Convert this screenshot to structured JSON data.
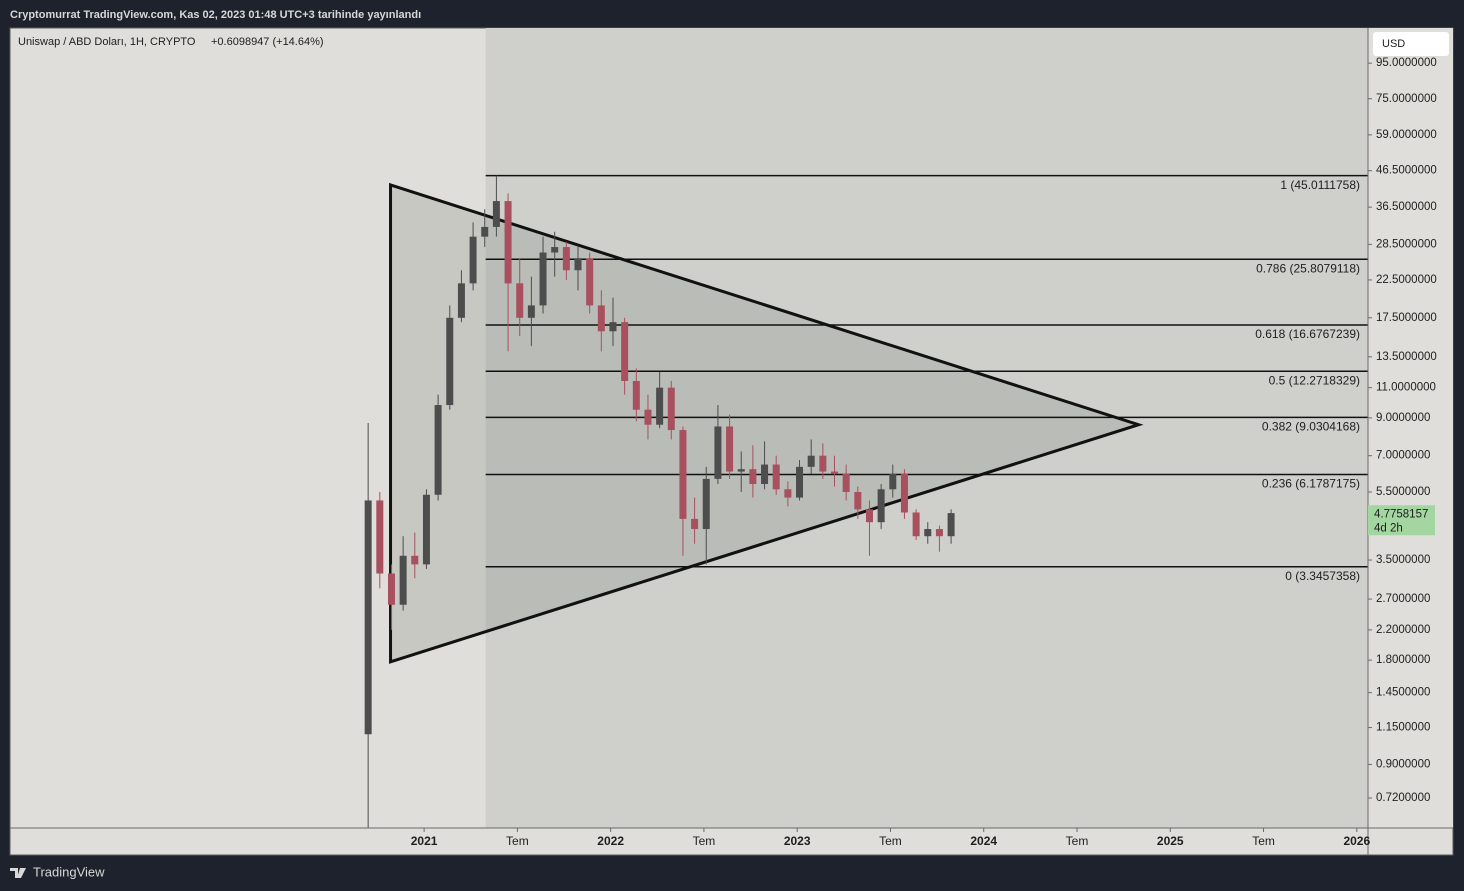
{
  "header": "Cryptomurrat TradingView.com, Kas 02, 2023 01:48 UTC+3 tarihinde yayınlandı",
  "footer_brand": "TradingView",
  "chart_data": {
    "type": "candlestick",
    "symbol": "Uniswap / ABD Doları, 1H, CRYPTO",
    "change": "+0.6098947 (+14.64%)",
    "currency": "USD",
    "log_scale": true,
    "xlim": [
      2018.78,
      2026.06
    ],
    "ylim": [
      0.59,
      120
    ],
    "xticks": [
      2021,
      {
        "value": 2021.5,
        "label": "Tem"
      },
      2022,
      {
        "value": 2022.5,
        "label": "Tem"
      },
      2023,
      {
        "value": 2023.5,
        "label": "Tem"
      },
      2024,
      {
        "value": 2024.5,
        "label": "Tem"
      },
      2025,
      {
        "value": 2025.5,
        "label": "Tem"
      },
      2026
    ],
    "yticks": [
      {
        "value": 95,
        "label": "95.0000000"
      },
      {
        "value": 75,
        "label": "75.0000000"
      },
      {
        "value": 59,
        "label": "59.0000000"
      },
      {
        "value": 46.5,
        "label": "46.5000000"
      },
      {
        "value": 36.5,
        "label": "36.5000000"
      },
      {
        "value": 28.5,
        "label": "28.5000000"
      },
      {
        "value": 22.5,
        "label": "22.5000000"
      },
      {
        "value": 17.5,
        "label": "17.5000000"
      },
      {
        "value": 13.5,
        "label": "13.5000000"
      },
      {
        "value": 11,
        "label": "11.0000000"
      },
      {
        "value": 9,
        "label": "9.0000000"
      },
      {
        "value": 7,
        "label": "7.0000000"
      },
      {
        "value": 5.5,
        "label": "5.5000000"
      },
      {
        "value": 3.5,
        "label": "3.5000000"
      },
      {
        "value": 2.7,
        "label": "2.7000000"
      },
      {
        "value": 2.2,
        "label": "2.2000000"
      },
      {
        "value": 1.8,
        "label": "1.8000000"
      },
      {
        "value": 1.45,
        "label": "1.4500000"
      },
      {
        "value": 1.15,
        "label": "1.1500000"
      },
      {
        "value": 0.9,
        "label": "0.9000000"
      },
      {
        "value": 0.72,
        "label": "0.7200000"
      }
    ],
    "up_color": "#4d4d4d",
    "down_color": "#a8505e",
    "x": [
      2020.7,
      2020.7625,
      2020.825,
      2020.8875,
      2020.95,
      2021.0125,
      2021.075,
      2021.1375,
      2021.2,
      2021.2625,
      2021.325,
      2021.3875,
      2021.45,
      2021.5125,
      2021.575,
      2021.6375,
      2021.7,
      2021.7625,
      2021.825,
      2021.8875,
      2021.95,
      2022.0125,
      2022.075,
      2022.1375,
      2022.2,
      2022.2625,
      2022.325,
      2022.3875,
      2022.45,
      2022.5125,
      2022.575,
      2022.6375,
      2022.7,
      2022.7625,
      2022.825,
      2022.8875,
      2022.95,
      2023.0125,
      2023.075,
      2023.1375,
      2023.2,
      2023.2625,
      2023.325,
      2023.3875,
      2023.45,
      2023.5125,
      2023.575,
      2023.6375,
      2023.7,
      2023.7625,
      2023.825
    ],
    "open": [
      1.1,
      5.2,
      3.2,
      2.6,
      3.6,
      3.4,
      5.4,
      9.8,
      17.5,
      22,
      30,
      32,
      38,
      22,
      17.5,
      19,
      27,
      28,
      24,
      26,
      19,
      16,
      17,
      11.5,
      9.5,
      8.6,
      11,
      8.3,
      4.6,
      4.3,
      6,
      8.5,
      6.3,
      6.4,
      5.8,
      6.6,
      5.6,
      5.3,
      6.5,
      7.0,
      6.3,
      6.2,
      5.5,
      4.9,
      4.5,
      5.6,
      6.2,
      4.8,
      4.1,
      4.3,
      4.1
    ],
    "high": [
      8.7,
      5.5,
      3.4,
      4.1,
      4.2,
      5.6,
      10.5,
      19,
      24,
      33,
      36,
      45,
      40,
      26,
      23,
      30,
      31,
      29,
      28,
      27,
      21,
      20,
      17.5,
      12.5,
      10.5,
      12.2,
      11.5,
      8.5,
      5.3,
      6.5,
      9.8,
      9.2,
      7.2,
      7.5,
      7.7,
      7.0,
      5.9,
      6.8,
      7.8,
      7.6,
      7.0,
      6.6,
      5.7,
      5.2,
      5.8,
      6.6,
      6.4,
      4.9,
      4.5,
      4.4,
      4.9
    ],
    "low": [
      0.59,
      2.9,
      2.2,
      2.5,
      3.1,
      3.3,
      5.2,
      9.5,
      17,
      21,
      28,
      30,
      14,
      15.5,
      14.5,
      18,
      23,
      22.5,
      21,
      18,
      14,
      14.5,
      10.5,
      8.8,
      7.8,
      8.4,
      7.8,
      3.6,
      3.9,
      3.4,
      5.8,
      6.0,
      5.5,
      5.3,
      5.6,
      5.4,
      5.0,
      5.2,
      6.2,
      6.0,
      5.7,
      5.2,
      4.6,
      3.6,
      4.3,
      5.3,
      4.6,
      4.0,
      3.9,
      3.7,
      3.9
    ],
    "close": [
      5.2,
      3.2,
      2.6,
      3.6,
      3.4,
      5.4,
      9.8,
      17.5,
      22,
      30,
      32,
      38,
      22,
      17.5,
      19,
      27,
      28,
      24,
      26,
      19,
      16,
      17,
      11.5,
      9.5,
      8.6,
      11,
      8.3,
      4.6,
      4.3,
      6.0,
      8.5,
      6.3,
      6.4,
      5.8,
      6.6,
      5.6,
      5.3,
      6.5,
      7.0,
      6.3,
      6.2,
      5.5,
      4.9,
      4.5,
      5.6,
      6.2,
      4.8,
      4.1,
      4.3,
      4.1,
      4.78
    ],
    "last_price": 4.7758157,
    "countdown": "4d 2h",
    "fib_start": 2021.33,
    "fib_levels": [
      {
        "label": "1 (45.0111758)",
        "value": 45.0111758
      },
      {
        "label": "0.786 (25.8079118)",
        "value": 25.8079118
      },
      {
        "label": "0.618 (16.6767239)",
        "value": 16.6767239
      },
      {
        "label": "0.5 (12.2718329)",
        "value": 12.2718329
      },
      {
        "label": "0.382 (9.0304168)",
        "value": 9.0304168
      },
      {
        "label": "0.236 (6.1787175)",
        "value": 6.1787175
      },
      {
        "label": "0 (3.3457358)",
        "value": 3.3457358
      }
    ],
    "triangle": [
      [
        2020.82,
        42.3
      ],
      [
        2020.82,
        1.78
      ],
      [
        2024.83,
        8.6
      ]
    ]
  }
}
